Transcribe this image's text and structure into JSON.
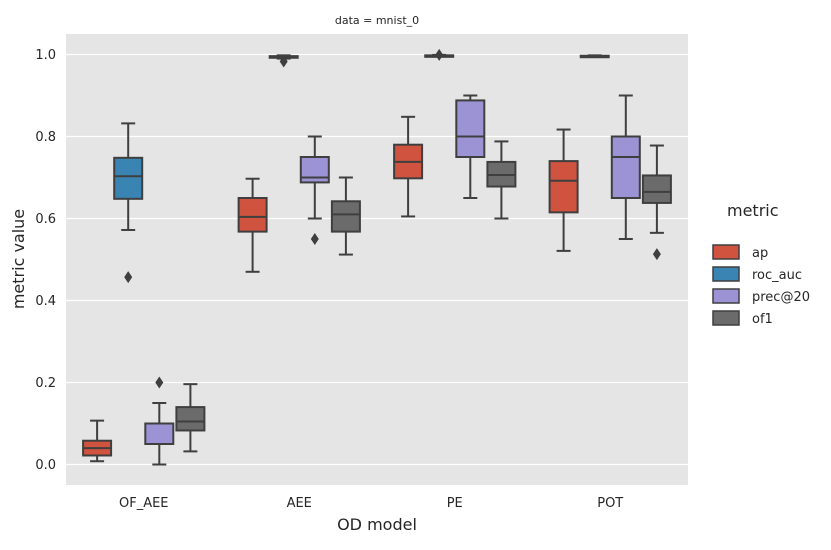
{
  "chart_data": {
    "type": "box",
    "title": "data = mnist_0",
    "xlabel": "OD model",
    "ylabel": "metric value",
    "ylim": [
      -0.05,
      1.05
    ],
    "yticks": [
      0.0,
      0.2,
      0.4,
      0.6,
      0.8,
      1.0
    ],
    "ytick_labels": [
      "0.0",
      "0.2",
      "0.4",
      "0.6",
      "0.8",
      "1.0"
    ],
    "grid": true,
    "categories": [
      "OF_AEE",
      "AEE",
      "PE",
      "POT"
    ],
    "legend": {
      "title": "metric",
      "placement": "right",
      "entries": [
        "ap",
        "roc_auc",
        "prec@20",
        "of1"
      ]
    },
    "colors": {
      "ap": "#d0533f",
      "roc_auc": "#3a84b4",
      "prec@20": "#9b93d4",
      "of1": "#6b6b6b",
      "panel_bg": "#e5e5e5",
      "line": "#3f3f3f"
    },
    "series": [
      {
        "name": "ap",
        "boxes": [
          {
            "min": 0.008,
            "q1": 0.022,
            "median": 0.04,
            "q3": 0.058,
            "max": 0.107,
            "outliers": []
          },
          {
            "min": 0.47,
            "q1": 0.568,
            "median": 0.604,
            "q3": 0.65,
            "max": 0.697,
            "outliers": []
          },
          {
            "min": 0.605,
            "q1": 0.698,
            "median": 0.738,
            "q3": 0.78,
            "max": 0.848,
            "outliers": []
          },
          {
            "min": 0.521,
            "q1": 0.615,
            "median": 0.692,
            "q3": 0.74,
            "max": 0.817,
            "outliers": []
          }
        ]
      },
      {
        "name": "roc_auc",
        "boxes": [
          {
            "min": 0.572,
            "q1": 0.648,
            "median": 0.703,
            "q3": 0.748,
            "max": 0.832,
            "outliers": [
              0.457
            ]
          },
          {
            "min": 0.99,
            "q1": 0.992,
            "median": 0.994,
            "q3": 0.996,
            "max": 0.998,
            "outliers": [
              0.983
            ]
          },
          {
            "min": 0.995,
            "q1": 0.996,
            "median": 0.997,
            "q3": 0.998,
            "max": 0.999,
            "outliers": [
              0.999
            ]
          },
          {
            "min": 0.994,
            "q1": 0.995,
            "median": 0.996,
            "q3": 0.997,
            "max": 0.998,
            "outliers": []
          }
        ]
      },
      {
        "name": "prec@20",
        "boxes": [
          {
            "min": 0.0,
            "q1": 0.05,
            "median": 0.05,
            "q3": 0.1,
            "max": 0.15,
            "outliers": [
              0.2
            ]
          },
          {
            "min": 0.6,
            "q1": 0.688,
            "median": 0.7,
            "q3": 0.75,
            "max": 0.8,
            "outliers": [
              0.55
            ]
          },
          {
            "min": 0.65,
            "q1": 0.75,
            "median": 0.8,
            "q3": 0.888,
            "max": 0.9,
            "outliers": []
          },
          {
            "min": 0.55,
            "q1": 0.65,
            "median": 0.75,
            "q3": 0.8,
            "max": 0.9,
            "outliers": []
          }
        ]
      },
      {
        "name": "of1",
        "boxes": [
          {
            "min": 0.032,
            "q1": 0.083,
            "median": 0.105,
            "q3": 0.14,
            "max": 0.196,
            "outliers": []
          },
          {
            "min": 0.512,
            "q1": 0.568,
            "median": 0.61,
            "q3": 0.642,
            "max": 0.7,
            "outliers": []
          },
          {
            "min": 0.6,
            "q1": 0.678,
            "median": 0.706,
            "q3": 0.738,
            "max": 0.788,
            "outliers": []
          },
          {
            "min": 0.565,
            "q1": 0.638,
            "median": 0.665,
            "q3": 0.705,
            "max": 0.778,
            "outliers": [
              0.513
            ]
          }
        ]
      }
    ]
  }
}
